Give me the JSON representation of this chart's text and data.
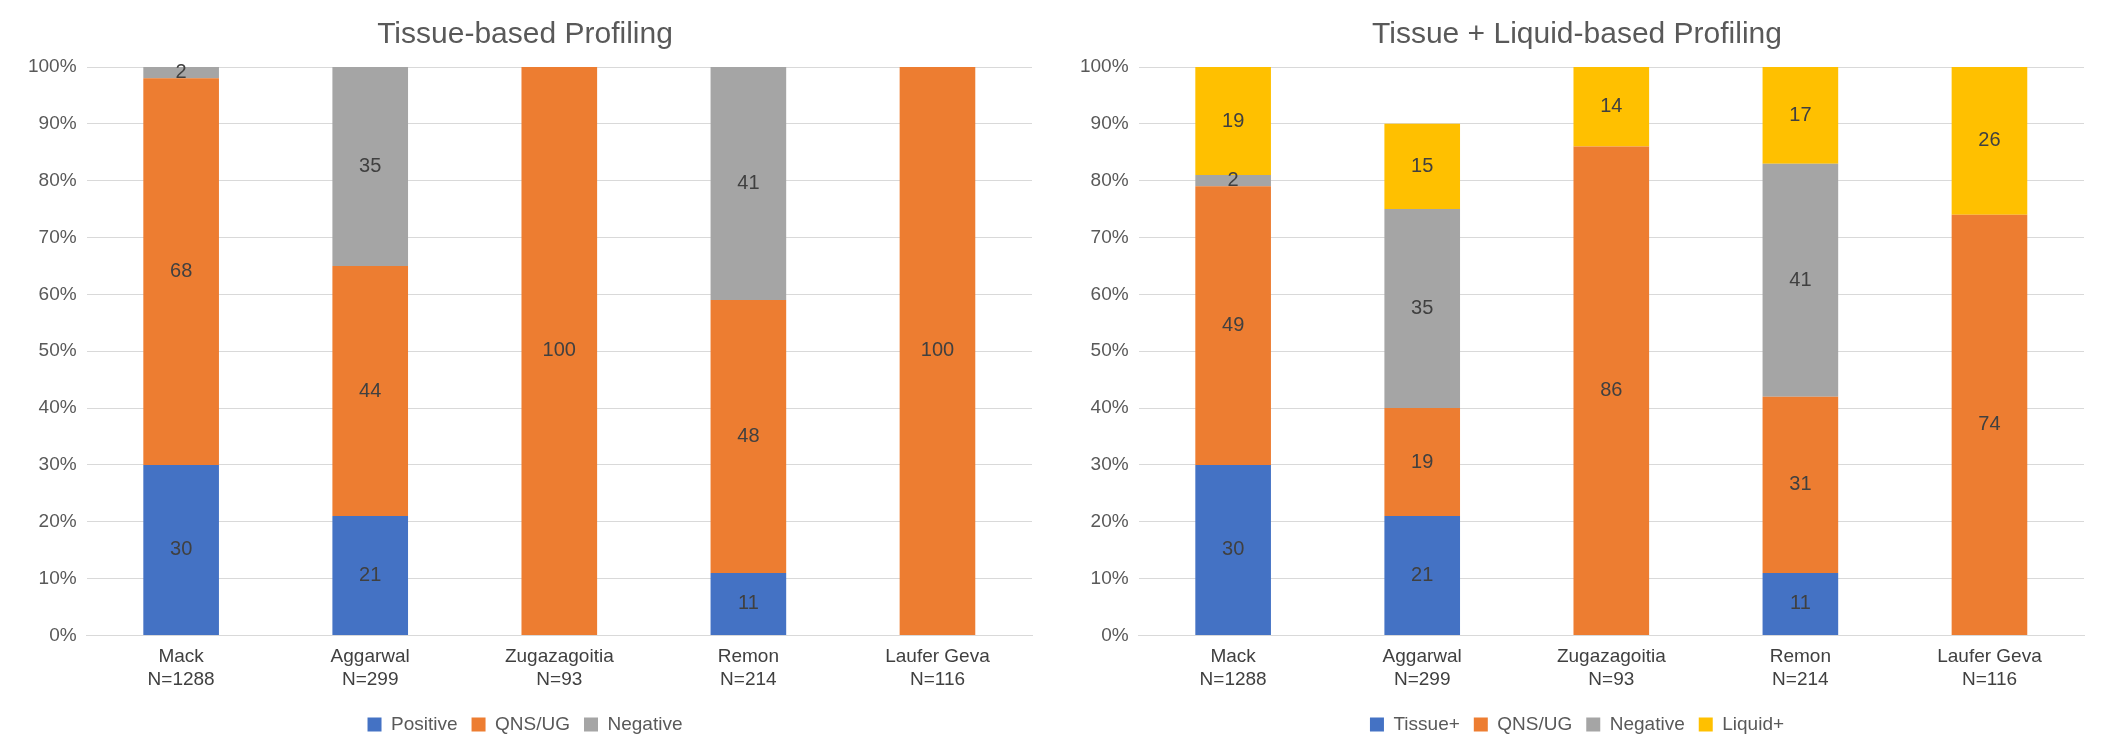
{
  "chart_data": [
    {
      "type": "bar",
      "title": "Tissue-based Profiling",
      "categories": [
        "Mack\nN=1288",
        "Aggarwal\nN=299",
        "Zugazagoitia\nN=93",
        "Remon\nN=214",
        "Laufer Geva\nN=116"
      ],
      "stacked": true,
      "ylim": [
        0,
        100
      ],
      "yticks": [
        {
          "value": 0,
          "label": "0%"
        },
        {
          "value": 10,
          "label": "10%"
        },
        {
          "value": 20,
          "label": "20%"
        },
        {
          "value": 30,
          "label": "30%"
        },
        {
          "value": 40,
          "label": "40%"
        },
        {
          "value": 50,
          "label": "50%"
        },
        {
          "value": 60,
          "label": "60%"
        },
        {
          "value": 70,
          "label": "70%"
        },
        {
          "value": 80,
          "label": "80%"
        },
        {
          "value": 90,
          "label": "90%"
        },
        {
          "value": 100,
          "label": "100%"
        }
      ],
      "grid": "y",
      "legend": "bottom",
      "series": [
        {
          "name": "Positive",
          "color": "#4472c4",
          "values": [
            30,
            21,
            null,
            11,
            null
          ],
          "value_labels": [
            "30",
            "21",
            null,
            "11",
            null
          ]
        },
        {
          "name": "QNS/UG",
          "color": "#ed7d31",
          "values": [
            68,
            44,
            100,
            48,
            100
          ],
          "value_labels": [
            "68",
            "44",
            "100",
            "48",
            "100"
          ]
        },
        {
          "name": "Negative",
          "color": "#a5a5a5",
          "values": [
            2,
            35,
            null,
            41,
            null
          ],
          "value_labels": [
            "2",
            "35",
            null,
            "41",
            null
          ]
        }
      ]
    },
    {
      "type": "bar",
      "title": "Tissue + Liquid-based Profiling",
      "categories": [
        "Mack\nN=1288",
        "Aggarwal\nN=299",
        "Zugazagoitia\nN=93",
        "Remon\nN=214",
        "Laufer Geva\nN=116"
      ],
      "stacked": true,
      "ylim": [
        0,
        100
      ],
      "yticks": [
        {
          "value": 0,
          "label": "0%"
        },
        {
          "value": 10,
          "label": "10%"
        },
        {
          "value": 20,
          "label": "20%"
        },
        {
          "value": 30,
          "label": "30%"
        },
        {
          "value": 40,
          "label": "40%"
        },
        {
          "value": 50,
          "label": "50%"
        },
        {
          "value": 60,
          "label": "60%"
        },
        {
          "value": 70,
          "label": "70%"
        },
        {
          "value": 80,
          "label": "80%"
        },
        {
          "value": 90,
          "label": "90%"
        },
        {
          "value": 100,
          "label": "100%"
        }
      ],
      "grid": "y",
      "legend": "bottom",
      "series": [
        {
          "name": "Tissue+",
          "color": "#4472c4",
          "values": [
            30,
            21,
            null,
            11,
            null
          ],
          "value_labels": [
            "30",
            "21",
            null,
            "11",
            null
          ]
        },
        {
          "name": "QNS/UG",
          "color": "#ed7d31",
          "values": [
            49,
            19,
            86,
            31,
            74
          ],
          "value_labels": [
            "49",
            "19",
            "86",
            "31",
            "74"
          ]
        },
        {
          "name": "Negative",
          "color": "#a5a5a5",
          "values": [
            2,
            35,
            null,
            41,
            null
          ],
          "value_labels": [
            "2",
            "35",
            null,
            "41",
            null
          ]
        },
        {
          "name": "Liquid+",
          "color": "#ffc000",
          "values": [
            19,
            15,
            14,
            17,
            26
          ],
          "value_labels": [
            "19",
            "15",
            "14",
            "17",
            "26"
          ]
        }
      ]
    }
  ]
}
